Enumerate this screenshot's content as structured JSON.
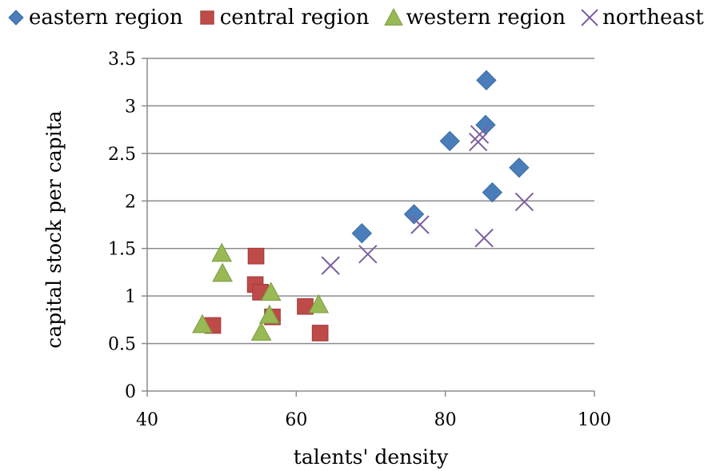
{
  "chart_data": {
    "type": "scatter",
    "xlabel": "talents' density",
    "ylabel": "capital stock per capita",
    "xlim": [
      40,
      100
    ],
    "ylim": [
      0,
      3.5
    ],
    "xticks": [
      40,
      60,
      80,
      100
    ],
    "yticks": [
      0,
      0.5,
      1,
      1.5,
      2,
      2.5,
      3,
      3.5
    ],
    "grid": "horizontal",
    "legend_position": "top",
    "series": [
      {
        "name": "eastern region",
        "marker": "diamond",
        "color": "#4A7EBB",
        "points": [
          [
            68.8,
            1.66
          ],
          [
            75.8,
            1.86
          ],
          [
            80.6,
            2.63
          ],
          [
            85.4,
            2.8
          ],
          [
            85.5,
            3.27
          ],
          [
            86.3,
            2.09
          ],
          [
            89.9,
            2.35
          ]
        ]
      },
      {
        "name": "central region",
        "marker": "square",
        "color": "#BE4B48",
        "points": [
          [
            48.8,
            0.69
          ],
          [
            54.6,
            1.42
          ],
          [
            54.5,
            1.12
          ],
          [
            55.2,
            1.04
          ],
          [
            56.8,
            0.78
          ],
          [
            61.2,
            0.89
          ],
          [
            63.2,
            0.61
          ]
        ]
      },
      {
        "name": "western region",
        "marker": "triangle",
        "color": "#98B954",
        "points": [
          [
            47.4,
            0.7
          ],
          [
            50.0,
            1.45
          ],
          [
            50.1,
            1.24
          ],
          [
            55.3,
            0.62
          ],
          [
            56.4,
            0.8
          ],
          [
            56.6,
            1.04
          ],
          [
            63.0,
            0.91
          ]
        ]
      },
      {
        "name": "northeast",
        "marker": "x",
        "color": "#7D60A0",
        "points": [
          [
            64.6,
            1.32
          ],
          [
            69.6,
            1.44
          ],
          [
            76.6,
            1.75
          ],
          [
            84.4,
            2.62
          ],
          [
            84.6,
            2.7
          ],
          [
            85.2,
            1.61
          ],
          [
            90.6,
            1.99
          ]
        ]
      }
    ]
  }
}
